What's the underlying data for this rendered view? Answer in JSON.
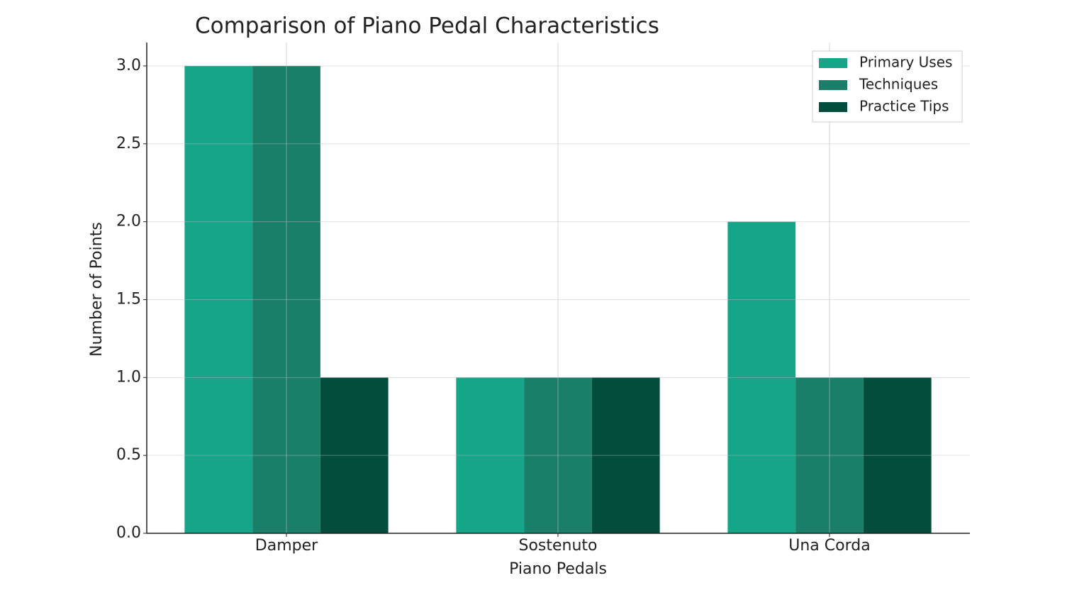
{
  "chart_data": {
    "type": "bar",
    "title": "Comparison of Piano Pedal Characteristics",
    "x_label": "Piano Pedals",
    "y_label": "Number of Points",
    "categories": [
      "Damper",
      "Sostenuto",
      "Una Corda"
    ],
    "series": [
      {
        "name": "Primary Uses",
        "color": "#17a589",
        "values": [
          3,
          1,
          2
        ]
      },
      {
        "name": "Techniques",
        "color": "#1a7f68",
        "values": [
          3,
          1,
          1
        ]
      },
      {
        "name": "Practice Tips",
        "color": "#024d3b",
        "values": [
          1,
          1,
          1
        ]
      }
    ],
    "ylim": [
      0,
      3.15
    ],
    "yticks": [
      {
        "value": 0,
        "label": "0.0"
      },
      0.5,
      {
        "value": 1,
        "label": "1.0"
      },
      1.5,
      {
        "value": 2,
        "label": "2.0"
      },
      2.5,
      {
        "value": 3,
        "label": "3.0"
      }
    ],
    "grid": true,
    "legend": "upper right"
  }
}
